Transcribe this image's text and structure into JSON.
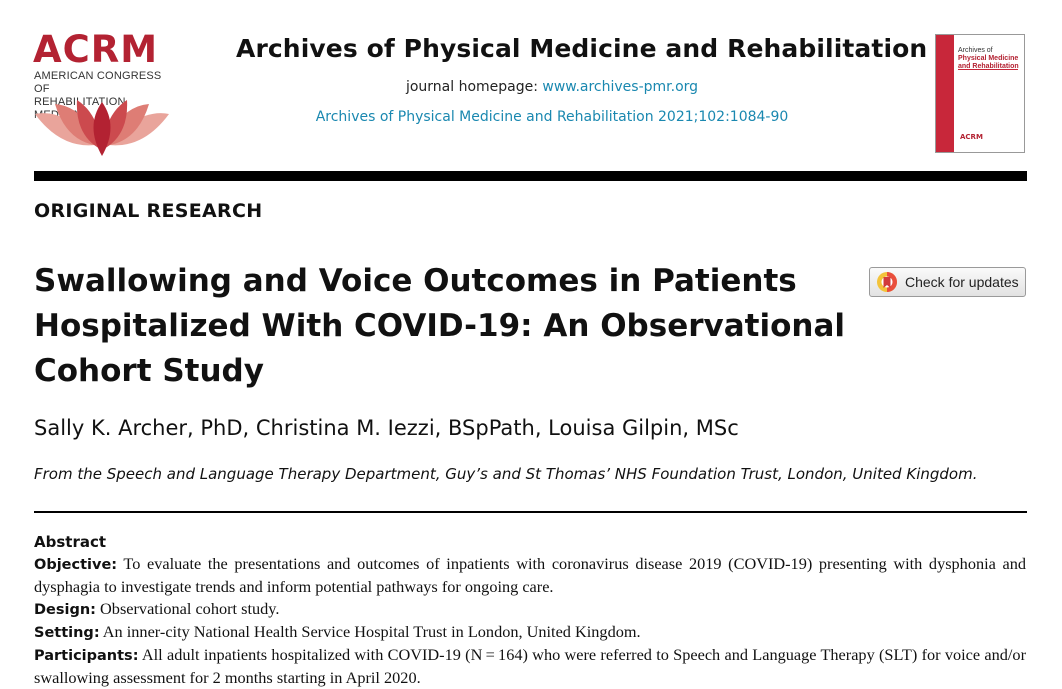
{
  "publisher_logo": {
    "word": "ACRM",
    "subtitle_line1": "AMERICAN CONGRESS OF",
    "subtitle_line2": "REHABILITATION MEDICINE",
    "brand_color": "#b32232"
  },
  "journal": {
    "title": "Archives of Physical Medicine and Rehabilitation",
    "homepage_label": "journal homepage: ",
    "homepage_url": "www.archives-pmr.org",
    "citation": "Archives of Physical Medicine and Rehabilitation 2021;102:1084-90",
    "link_color": "#1a88b0"
  },
  "cover": {
    "title_line1": "Archives of",
    "title_line2": "Physical Medicine",
    "title_line3": "and Rehabilitation",
    "logo_text": "ACRM"
  },
  "article": {
    "section": "ORIGINAL RESEARCH",
    "title": "Swallowing and Voice Outcomes in Patients Hospitalized With COVID-19: An Observational Cohort Study",
    "authors": "Sally K. Archer, PhD, Christina M. Iezzi, BSpPath, Louisa Gilpin, MSc",
    "affiliation": "From the Speech and Language Therapy Department, Guy’s and St Thomas’ NHS Foundation Trust, London, United Kingdom."
  },
  "check_updates": {
    "label": "Check for updates",
    "icon": "check-for-updates-icon"
  },
  "abstract": {
    "heading": "Abstract",
    "items": [
      {
        "key": "Objective:",
        "text": " To evaluate the presentations and outcomes of inpatients with coronavirus disease 2019 (COVID-19) presenting with dysphonia and dysphagia to investigate trends and inform potential pathways for ongoing care."
      },
      {
        "key": "Design:",
        "text": " Observational cohort study."
      },
      {
        "key": "Setting:",
        "text": " An inner-city National Health Service Hospital Trust in London, United Kingdom."
      },
      {
        "key": "Participants:",
        "text": " All adult inpatients hospitalized with COVID-19 (N = 164) who were referred to Speech and Language Therapy (SLT) for voice and/or swallowing assessment for 2 months starting in April 2020."
      }
    ]
  }
}
